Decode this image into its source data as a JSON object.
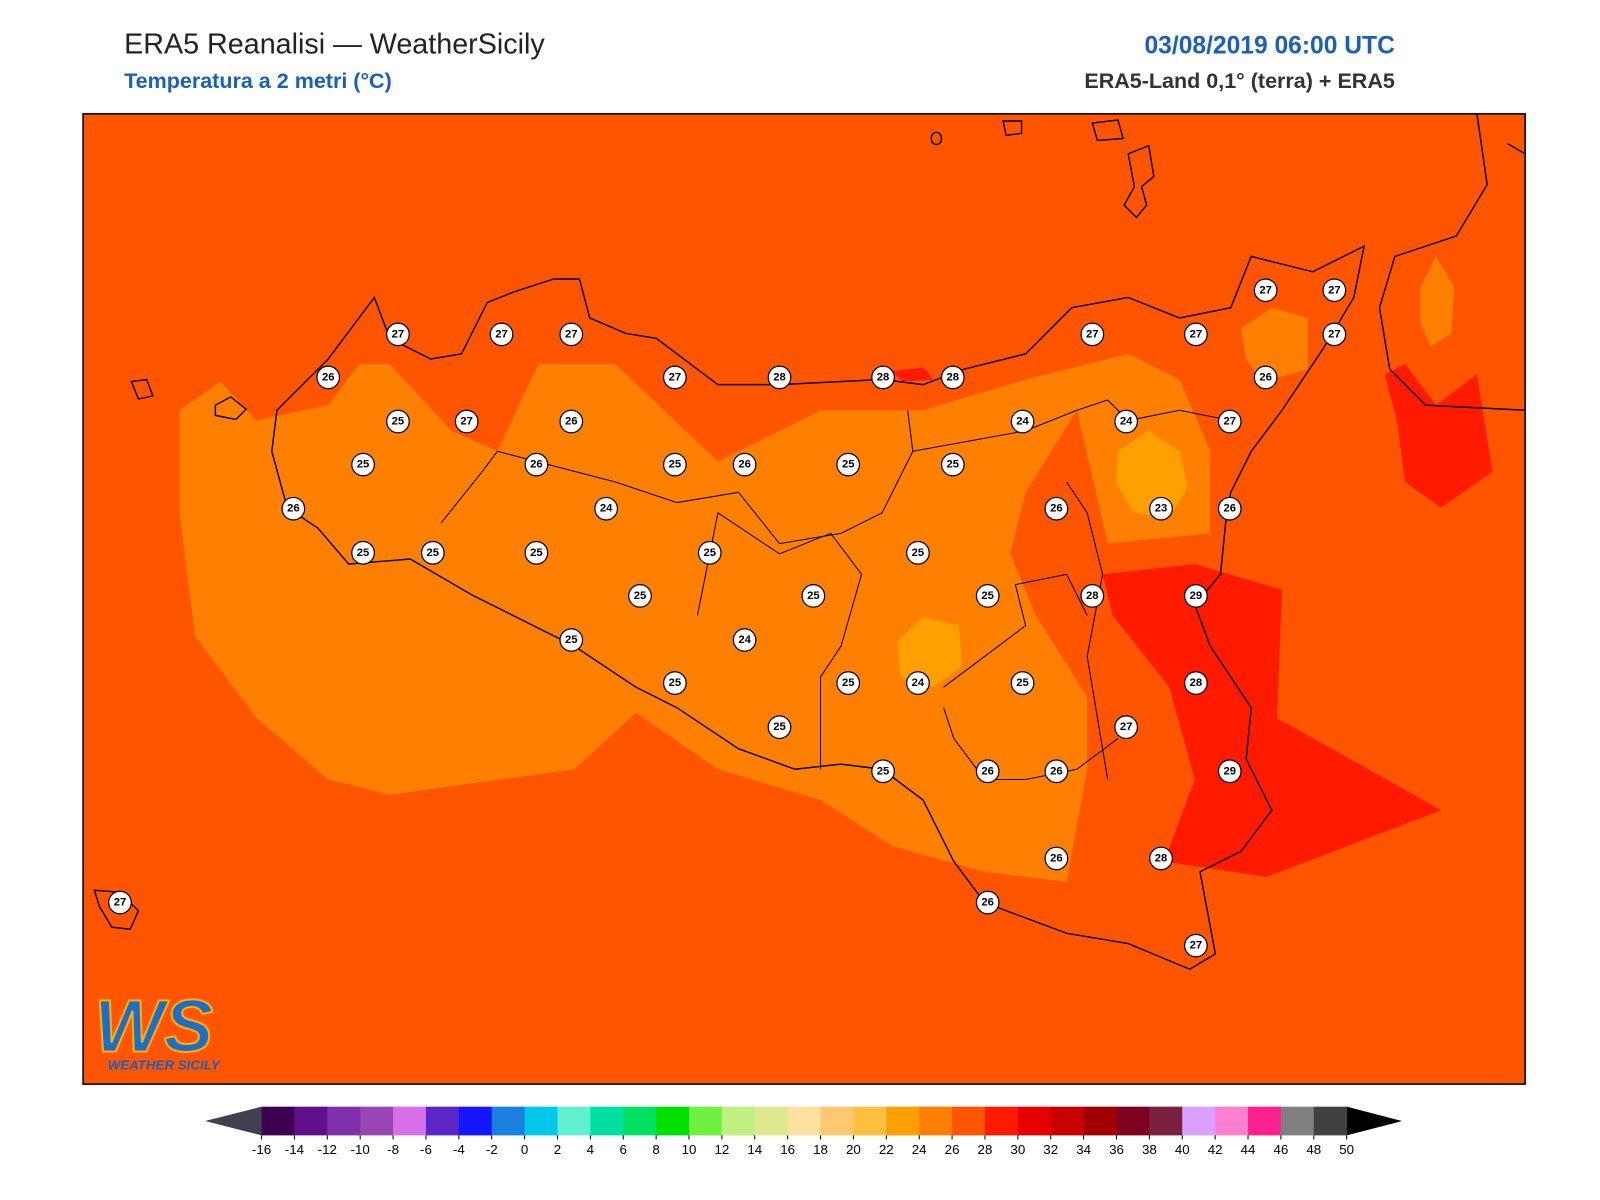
{
  "header": {
    "title": "ERA5 Reanalisi — WeatherSicily",
    "subtitle": "Temperatura a 2 metri (°C)",
    "datetime": "03/08/2019 06:00 UTC",
    "source": "ERA5-Land 0,1° (terra) + ERA5"
  },
  "stations": [
    27,
    27,
    27,
    26,
    27,
    28,
    28,
    28,
    27,
    27,
    27,
    27,
    27,
    26,
    25,
    27,
    26,
    24,
    24,
    27,
    25,
    26,
    25,
    26,
    25,
    25,
    26,
    24,
    26,
    23,
    26,
    25,
    25,
    25,
    25,
    25,
    25,
    25,
    25,
    28,
    29,
    25,
    24,
    25,
    25,
    24,
    25,
    28,
    25,
    27,
    25,
    26,
    26,
    29,
    26,
    28,
    26,
    27,
    27
  ],
  "colorbar": {
    "ticks": [
      -16,
      -14,
      -12,
      -10,
      -8,
      -6,
      -4,
      -2,
      0,
      2,
      4,
      6,
      8,
      10,
      12,
      14,
      16,
      18,
      20,
      22,
      24,
      26,
      28,
      30,
      32,
      34,
      36,
      38,
      40,
      42,
      44,
      46,
      48,
      50
    ],
    "colors": [
      "#3d0050",
      "#62108a",
      "#8030a8",
      "#9a45b5",
      "#d66fe8",
      "#5a26c8",
      "#1515ff",
      "#1a80e0",
      "#00c8e8",
      "#60f0d0",
      "#00e0a0",
      "#00e060",
      "#00e000",
      "#70f040",
      "#c0f080",
      "#e0e890",
      "#ffe0a0",
      "#ffc870",
      "#ffc040",
      "#ffa000",
      "#ff8000",
      "#ff5500",
      "#ff1a00",
      "#e60000",
      "#c80000",
      "#a00000",
      "#800020",
      "#7a2040",
      "#d9a0ff",
      "#ff80d0",
      "#ff2090",
      "#808080",
      "#404040"
    ],
    "under": "#404050",
    "over": "#000000"
  },
  "logo": {
    "mark": "WS",
    "name": "WEATHER SICILY"
  }
}
